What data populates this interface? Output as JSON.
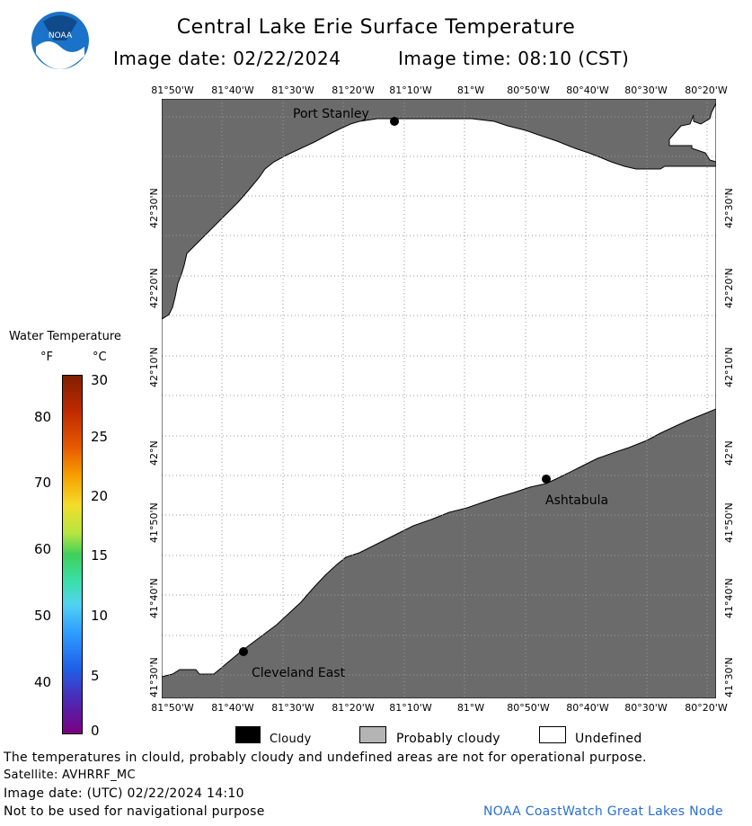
{
  "header": {
    "title": "Central Lake Erie Surface Temperature",
    "image_date_label": "Image date: 02/22/2024",
    "image_time_label": "Image time: 08:10 (CST)"
  },
  "logo": {
    "text": "NOAA"
  },
  "map": {
    "lon_ticks": [
      "81°50'W",
      "81°40'W",
      "81°30'W",
      "81°20'W",
      "81°10'W",
      "81°W",
      "80°50'W",
      "80°40'W",
      "80°30'W",
      "80°20'W"
    ],
    "lat_ticks": [
      "42°30'N",
      "42°20'N",
      "42°10'N",
      "42°N",
      "41°50'N",
      "41°40'N",
      "41°30'N"
    ],
    "places": [
      {
        "name": "Port Stanley"
      },
      {
        "name": "Ashtabula"
      },
      {
        "name": "Cleveland East"
      }
    ],
    "land_color": "#6b6b6b",
    "water_color": "#ffffff",
    "grid_color": "#9a9a9a"
  },
  "colorbar": {
    "title": "Water Temperature",
    "unit_f": "°F",
    "unit_c": "°C",
    "f_ticks": [
      "80",
      "70",
      "60",
      "50",
      "40"
    ],
    "c_ticks": [
      "30",
      "25",
      "20",
      "15",
      "10",
      "5",
      "0"
    ]
  },
  "legend": {
    "items": [
      {
        "label": "Cloudy",
        "color": "#000000"
      },
      {
        "label": "Probably cloudy",
        "color": "#b4b4b4"
      },
      {
        "label": "Undefined",
        "color": "#ffffff"
      }
    ]
  },
  "footer": {
    "disclaimer": "The temperatures in clould, probably cloudy and undefined areas are not for operational purpose.",
    "satellite": "Satellite: AVHRRF_MC",
    "utc_date": "Image date: (UTC) 02/22/2024  14:10",
    "nav_warning": "Not to be used for navigational purpose",
    "credit": "NOAA CoastWatch Great Lakes Node"
  }
}
